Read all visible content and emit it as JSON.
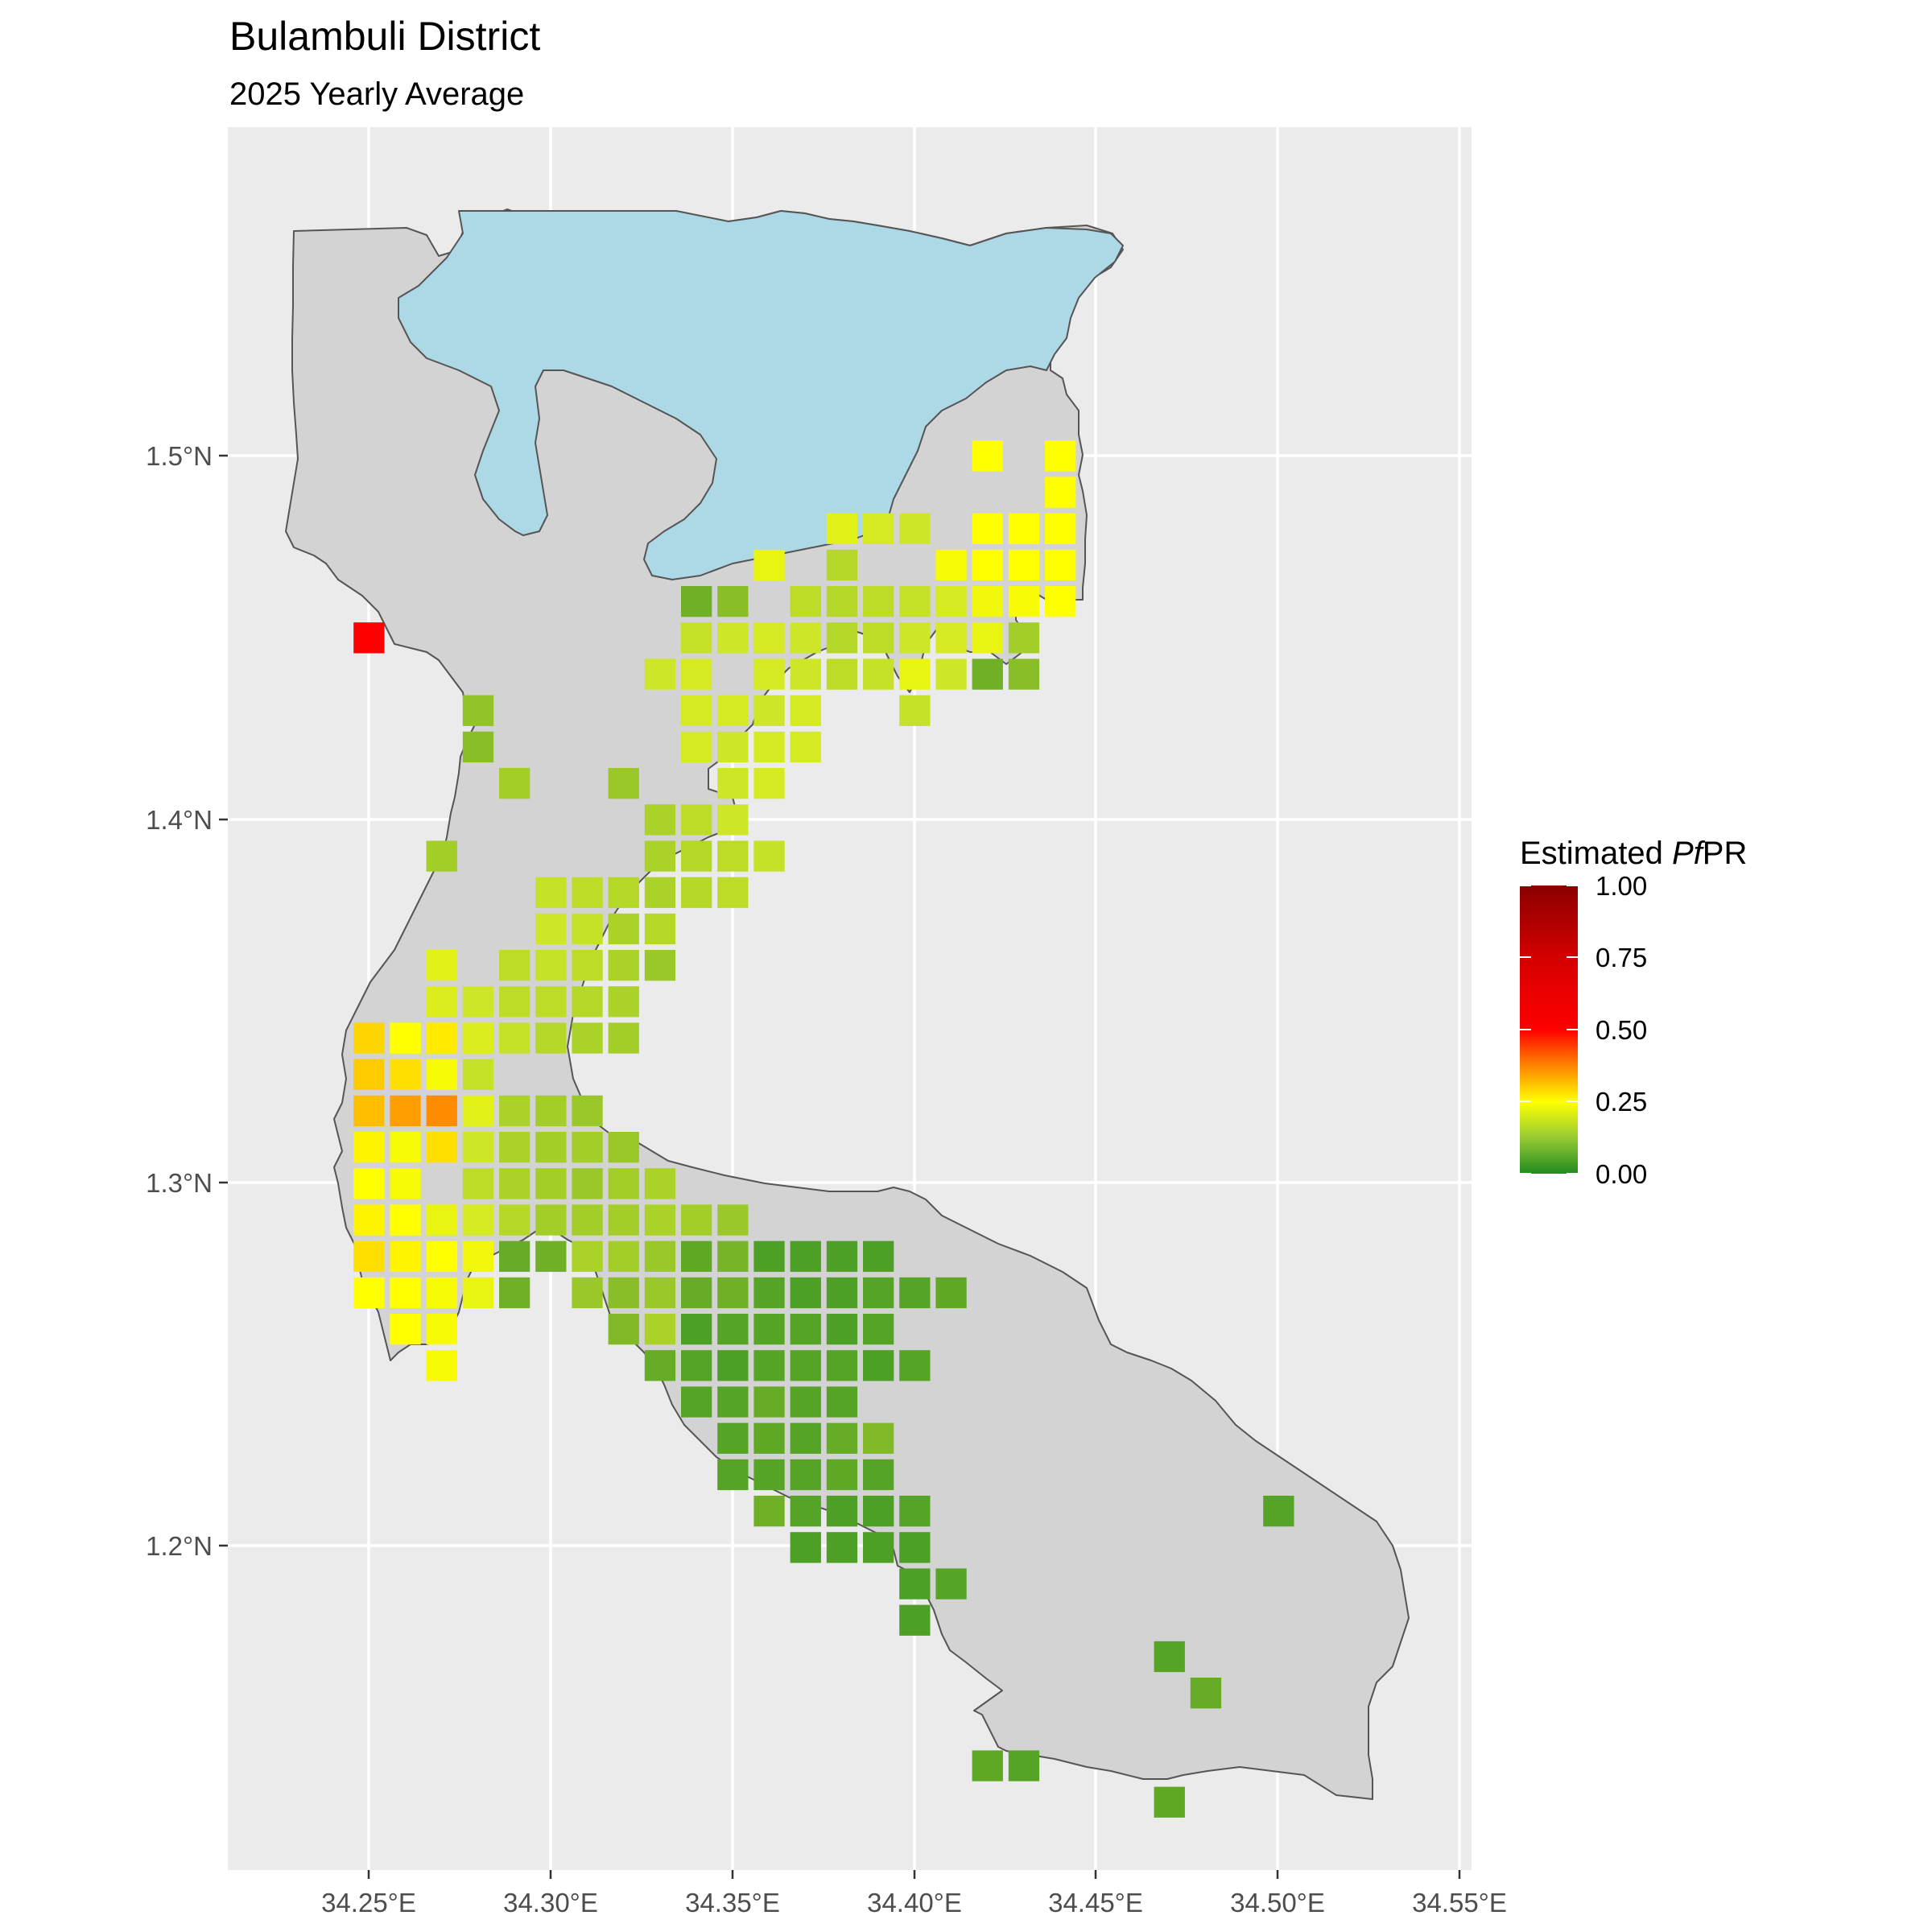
{
  "title": "Bulambuli District",
  "subtitle": "2025 Yearly Average",
  "axes": {
    "x_ticks": [
      "34.25°E",
      "34.30°E",
      "34.35°E",
      "34.40°E",
      "34.45°E",
      "34.50°E",
      "34.55°E"
    ],
    "y_ticks": [
      "1.5°N",
      "1.4°N",
      "1.3°N",
      "1.2°N"
    ]
  },
  "legend": {
    "title_prefix": "Estimated ",
    "title_italic": "Pf",
    "title_suffix": "PR",
    "labels": [
      "1.00",
      "0.75",
      "0.50",
      "0.25",
      "0.00"
    ],
    "colors": [
      "#8b0000",
      "#ff0000",
      "#ff7f00",
      "#ffff00",
      "#228b22"
    ]
  },
  "colors": {
    "panel_background": "#ebebeb",
    "district_fill": "#d3d3d3",
    "lake_fill": "#add8e6"
  },
  "chart_data": {
    "type": "heatmap",
    "x_range": [
      34.21,
      34.55
    ],
    "y_range": [
      1.11,
      1.59
    ],
    "value_range": [
      0,
      1
    ],
    "cell_size_deg": 0.00833,
    "cells": [
      [
        34.42,
        1.5,
        0.27
      ],
      [
        34.44,
        1.5,
        0.27
      ],
      [
        34.44,
        1.49,
        0.27
      ],
      [
        34.43,
        1.48,
        0.27
      ],
      [
        34.44,
        1.48,
        0.27
      ],
      [
        34.42,
        1.48,
        0.27
      ],
      [
        34.42,
        1.47,
        0.27
      ],
      [
        34.43,
        1.47,
        0.27
      ],
      [
        34.44,
        1.47,
        0.27
      ],
      [
        34.41,
        1.47,
        0.26
      ],
      [
        34.4,
        1.48,
        0.2
      ],
      [
        34.39,
        1.48,
        0.21
      ],
      [
        34.38,
        1.48,
        0.23
      ],
      [
        34.36,
        1.47,
        0.24
      ],
      [
        34.38,
        1.47,
        0.17
      ],
      [
        34.39,
        1.46,
        0.18
      ],
      [
        34.38,
        1.46,
        0.17
      ],
      [
        34.37,
        1.46,
        0.18
      ],
      [
        34.4,
        1.46,
        0.19
      ],
      [
        34.41,
        1.46,
        0.21
      ],
      [
        34.42,
        1.46,
        0.25
      ],
      [
        34.43,
        1.46,
        0.26
      ],
      [
        34.44,
        1.46,
        0.27
      ],
      [
        34.34,
        1.46,
        0.09
      ],
      [
        34.35,
        1.46,
        0.12
      ],
      [
        34.34,
        1.45,
        0.19
      ],
      [
        34.35,
        1.45,
        0.2
      ],
      [
        34.36,
        1.45,
        0.21
      ],
      [
        34.37,
        1.45,
        0.2
      ],
      [
        34.38,
        1.45,
        0.17
      ],
      [
        34.39,
        1.45,
        0.18
      ],
      [
        34.4,
        1.45,
        0.2
      ],
      [
        34.41,
        1.45,
        0.21
      ],
      [
        34.42,
        1.45,
        0.24
      ],
      [
        34.43,
        1.45,
        0.15
      ],
      [
        34.42,
        1.44,
        0.09
      ],
      [
        34.43,
        1.44,
        0.12
      ],
      [
        34.33,
        1.44,
        0.2
      ],
      [
        34.34,
        1.44,
        0.21
      ],
      [
        34.36,
        1.44,
        0.21
      ],
      [
        34.37,
        1.44,
        0.2
      ],
      [
        34.38,
        1.44,
        0.18
      ],
      [
        34.39,
        1.44,
        0.19
      ],
      [
        34.4,
        1.44,
        0.24
      ],
      [
        34.41,
        1.44,
        0.2
      ],
      [
        34.34,
        1.43,
        0.21
      ],
      [
        34.35,
        1.43,
        0.21
      ],
      [
        34.36,
        1.43,
        0.2
      ],
      [
        34.37,
        1.43,
        0.21
      ],
      [
        34.4,
        1.43,
        0.19
      ],
      [
        34.34,
        1.42,
        0.21
      ],
      [
        34.35,
        1.42,
        0.2
      ],
      [
        34.36,
        1.42,
        0.21
      ],
      [
        34.37,
        1.42,
        0.21
      ],
      [
        34.35,
        1.41,
        0.2
      ],
      [
        34.36,
        1.41,
        0.21
      ],
      [
        34.29,
        1.41,
        0.15
      ],
      [
        34.32,
        1.41,
        0.14
      ],
      [
        34.28,
        1.43,
        0.13
      ],
      [
        34.28,
        1.42,
        0.12
      ],
      [
        34.33,
        1.4,
        0.16
      ],
      [
        34.34,
        1.4,
        0.18
      ],
      [
        34.35,
        1.4,
        0.2
      ],
      [
        34.33,
        1.39,
        0.16
      ],
      [
        34.34,
        1.39,
        0.17
      ],
      [
        34.35,
        1.39,
        0.18
      ],
      [
        34.36,
        1.39,
        0.19
      ],
      [
        34.27,
        1.39,
        0.15
      ],
      [
        34.3,
        1.38,
        0.19
      ],
      [
        34.31,
        1.38,
        0.18
      ],
      [
        34.32,
        1.38,
        0.17
      ],
      [
        34.33,
        1.38,
        0.16
      ],
      [
        34.34,
        1.38,
        0.17
      ],
      [
        34.35,
        1.38,
        0.18
      ],
      [
        34.3,
        1.37,
        0.2
      ],
      [
        34.31,
        1.37,
        0.19
      ],
      [
        34.32,
        1.37,
        0.16
      ],
      [
        34.33,
        1.37,
        0.17
      ],
      [
        34.3,
        1.36,
        0.19
      ],
      [
        34.31,
        1.36,
        0.18
      ],
      [
        34.32,
        1.36,
        0.16
      ],
      [
        34.33,
        1.36,
        0.14
      ],
      [
        34.27,
        1.36,
        0.23
      ],
      [
        34.29,
        1.36,
        0.18
      ],
      [
        34.3,
        1.35,
        0.18
      ],
      [
        34.31,
        1.35,
        0.17
      ],
      [
        34.32,
        1.35,
        0.16
      ],
      [
        34.27,
        1.35,
        0.22
      ],
      [
        34.28,
        1.35,
        0.2
      ],
      [
        34.29,
        1.35,
        0.18
      ],
      [
        34.26,
        1.34,
        0.25
      ],
      [
        34.27,
        1.34,
        0.24
      ],
      [
        34.28,
        1.34,
        0.22
      ],
      [
        34.29,
        1.34,
        0.19
      ],
      [
        34.3,
        1.34,
        0.17
      ],
      [
        34.31,
        1.34,
        0.16
      ],
      [
        34.32,
        1.34,
        0.15
      ],
      [
        34.25,
        1.34,
        0.31
      ],
      [
        34.26,
        1.34,
        0.27
      ],
      [
        34.27,
        1.34,
        0.29
      ],
      [
        34.28,
        1.34,
        0.22
      ],
      [
        34.25,
        1.33,
        0.32
      ],
      [
        34.26,
        1.33,
        0.3
      ],
      [
        34.27,
        1.33,
        0.26
      ],
      [
        34.28,
        1.33,
        0.19
      ],
      [
        34.25,
        1.32,
        0.33
      ],
      [
        34.26,
        1.32,
        0.37
      ],
      [
        34.27,
        1.32,
        0.4
      ],
      [
        34.28,
        1.32,
        0.23
      ],
      [
        34.29,
        1.32,
        0.16
      ],
      [
        34.3,
        1.32,
        0.15
      ],
      [
        34.31,
        1.32,
        0.14
      ],
      [
        34.25,
        1.31,
        0.28
      ],
      [
        34.26,
        1.31,
        0.26
      ],
      [
        34.27,
        1.31,
        0.3
      ],
      [
        34.28,
        1.31,
        0.2
      ],
      [
        34.29,
        1.31,
        0.16
      ],
      [
        34.3,
        1.31,
        0.15
      ],
      [
        34.31,
        1.31,
        0.15
      ],
      [
        34.32,
        1.31,
        0.14
      ],
      [
        34.25,
        1.3,
        0.27
      ],
      [
        34.26,
        1.3,
        0.26
      ],
      [
        34.28,
        1.3,
        0.18
      ],
      [
        34.29,
        1.3,
        0.16
      ],
      [
        34.3,
        1.3,
        0.15
      ],
      [
        34.31,
        1.3,
        0.14
      ],
      [
        34.32,
        1.3,
        0.15
      ],
      [
        34.33,
        1.3,
        0.16
      ],
      [
        34.25,
        1.29,
        0.28
      ],
      [
        34.26,
        1.29,
        0.27
      ],
      [
        34.27,
        1.29,
        0.24
      ],
      [
        34.28,
        1.29,
        0.21
      ],
      [
        34.29,
        1.29,
        0.17
      ],
      [
        34.3,
        1.29,
        0.15
      ],
      [
        34.31,
        1.29,
        0.15
      ],
      [
        34.32,
        1.29,
        0.15
      ],
      [
        34.33,
        1.29,
        0.16
      ],
      [
        34.34,
        1.29,
        0.15
      ],
      [
        34.35,
        1.29,
        0.14
      ],
      [
        34.25,
        1.28,
        0.3
      ],
      [
        34.26,
        1.28,
        0.28
      ],
      [
        34.27,
        1.28,
        0.27
      ],
      [
        34.28,
        1.28,
        0.25
      ],
      [
        34.29,
        1.28,
        0.08
      ],
      [
        34.3,
        1.28,
        0.09
      ],
      [
        34.31,
        1.28,
        0.16
      ],
      [
        34.32,
        1.28,
        0.15
      ],
      [
        34.33,
        1.28,
        0.14
      ],
      [
        34.34,
        1.28,
        0.07
      ],
      [
        34.35,
        1.28,
        0.1
      ],
      [
        34.36,
        1.28,
        0.05
      ],
      [
        34.37,
        1.28,
        0.05
      ],
      [
        34.38,
        1.28,
        0.05
      ],
      [
        34.39,
        1.28,
        0.05
      ],
      [
        34.25,
        1.27,
        0.27
      ],
      [
        34.26,
        1.27,
        0.27
      ],
      [
        34.27,
        1.27,
        0.26
      ],
      [
        34.28,
        1.27,
        0.24
      ],
      [
        34.29,
        1.27,
        0.09
      ],
      [
        34.31,
        1.27,
        0.14
      ],
      [
        34.32,
        1.27,
        0.12
      ],
      [
        34.33,
        1.27,
        0.14
      ],
      [
        34.34,
        1.27,
        0.08
      ],
      [
        34.35,
        1.27,
        0.09
      ],
      [
        34.36,
        1.27,
        0.06
      ],
      [
        34.37,
        1.27,
        0.05
      ],
      [
        34.38,
        1.27,
        0.05
      ],
      [
        34.39,
        1.27,
        0.06
      ],
      [
        34.4,
        1.27,
        0.06
      ],
      [
        34.41,
        1.27,
        0.07
      ],
      [
        34.26,
        1.26,
        0.27
      ],
      [
        34.27,
        1.26,
        0.26
      ],
      [
        34.32,
        1.26,
        0.11
      ],
      [
        34.33,
        1.26,
        0.16
      ],
      [
        34.34,
        1.26,
        0.05
      ],
      [
        34.35,
        1.26,
        0.06
      ],
      [
        34.36,
        1.26,
        0.06
      ],
      [
        34.37,
        1.26,
        0.06
      ],
      [
        34.38,
        1.26,
        0.05
      ],
      [
        34.39,
        1.26,
        0.06
      ],
      [
        34.27,
        1.25,
        0.26
      ],
      [
        34.33,
        1.25,
        0.08
      ],
      [
        34.34,
        1.25,
        0.06
      ],
      [
        34.35,
        1.25,
        0.05
      ],
      [
        34.36,
        1.25,
        0.06
      ],
      [
        34.37,
        1.25,
        0.06
      ],
      [
        34.38,
        1.25,
        0.06
      ],
      [
        34.39,
        1.25,
        0.05
      ],
      [
        34.4,
        1.25,
        0.06
      ],
      [
        34.34,
        1.24,
        0.06
      ],
      [
        34.35,
        1.24,
        0.06
      ],
      [
        34.36,
        1.24,
        0.08
      ],
      [
        34.37,
        1.24,
        0.06
      ],
      [
        34.38,
        1.24,
        0.06
      ],
      [
        34.35,
        1.23,
        0.06
      ],
      [
        34.36,
        1.23,
        0.07
      ],
      [
        34.37,
        1.23,
        0.06
      ],
      [
        34.38,
        1.23,
        0.08
      ],
      [
        34.39,
        1.23,
        0.11
      ],
      [
        34.35,
        1.22,
        0.06
      ],
      [
        34.36,
        1.22,
        0.06
      ],
      [
        34.37,
        1.22,
        0.06
      ],
      [
        34.38,
        1.22,
        0.07
      ],
      [
        34.39,
        1.22,
        0.06
      ],
      [
        34.36,
        1.21,
        0.09
      ],
      [
        34.37,
        1.21,
        0.06
      ],
      [
        34.38,
        1.21,
        0.05
      ],
      [
        34.39,
        1.21,
        0.05
      ],
      [
        34.4,
        1.21,
        0.06
      ],
      [
        34.37,
        1.2,
        0.05
      ],
      [
        34.38,
        1.2,
        0.05
      ],
      [
        34.39,
        1.2,
        0.05
      ],
      [
        34.4,
        1.2,
        0.05
      ],
      [
        34.4,
        1.19,
        0.05
      ],
      [
        34.41,
        1.19,
        0.06
      ],
      [
        34.4,
        1.18,
        0.05
      ],
      [
        34.5,
        1.21,
        0.06
      ],
      [
        34.47,
        1.17,
        0.06
      ],
      [
        34.48,
        1.16,
        0.08
      ],
      [
        34.42,
        1.14,
        0.07
      ],
      [
        34.43,
        1.14,
        0.06
      ],
      [
        34.47,
        1.13,
        0.07
      ],
      [
        34.25,
        1.45,
        0.55
      ]
    ]
  }
}
